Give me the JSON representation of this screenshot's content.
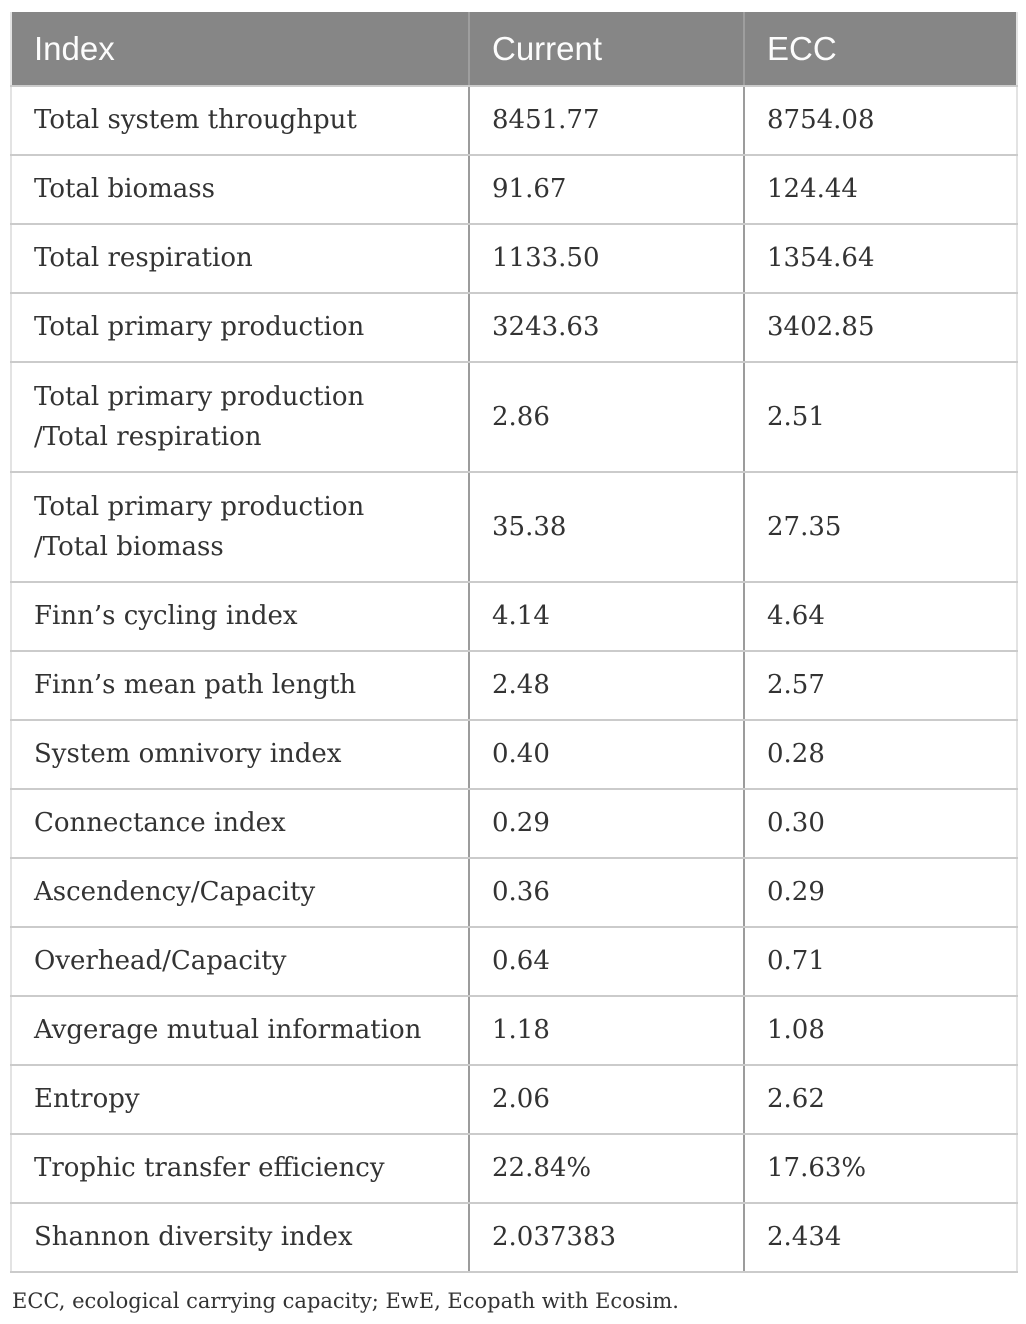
{
  "table": {
    "columns": [
      "Index",
      "Current",
      "ECC"
    ],
    "rows": [
      {
        "index": "Total system throughput",
        "current": "8451.77",
        "ecc": "8754.08"
      },
      {
        "index": "Total biomass",
        "current": "91.67",
        "ecc": "124.44"
      },
      {
        "index": "Total respiration",
        "current": "1133.50",
        "ecc": "1354.64"
      },
      {
        "index": "Total primary production",
        "current": "3243.63",
        "ecc": "3402.85"
      },
      {
        "index": "Total primary production\n/Total respiration",
        "current": "2.86",
        "ecc": "2.51"
      },
      {
        "index": "Total primary production\n/Total biomass",
        "current": "35.38",
        "ecc": "27.35"
      },
      {
        "index": "Finn’s cycling index",
        "current": "4.14",
        "ecc": "4.64"
      },
      {
        "index": "Finn’s mean path length",
        "current": "2.48",
        "ecc": "2.57"
      },
      {
        "index": "System omnivory index",
        "current": "0.40",
        "ecc": "0.28"
      },
      {
        "index": "Connectance index",
        "current": "0.29",
        "ecc": "0.30"
      },
      {
        "index": "Ascendency/Capacity",
        "current": "0.36",
        "ecc": "0.29"
      },
      {
        "index": "Overhead/Capacity",
        "current": "0.64",
        "ecc": "0.71"
      },
      {
        "index": "Avgerage mutual information",
        "current": "1.18",
        "ecc": "1.08"
      },
      {
        "index": "Entropy",
        "current": "2.06",
        "ecc": "2.62"
      },
      {
        "index": "Trophic transfer efficiency",
        "current": "22.84%",
        "ecc": "17.63%"
      },
      {
        "index": "Shannon diversity index",
        "current": "2.037383",
        "ecc": "2.434"
      }
    ],
    "footnote": "ECC, ecological carrying capacity; EwE, Ecopath with Ecosim."
  },
  "colors": {
    "header_bg": "#868686",
    "header_text": "#fcfcfc",
    "body_text": "#333333",
    "row_border": "#cbcbcb",
    "column_border": "#9c9c9c",
    "outer_border": "#e3e3e3"
  }
}
